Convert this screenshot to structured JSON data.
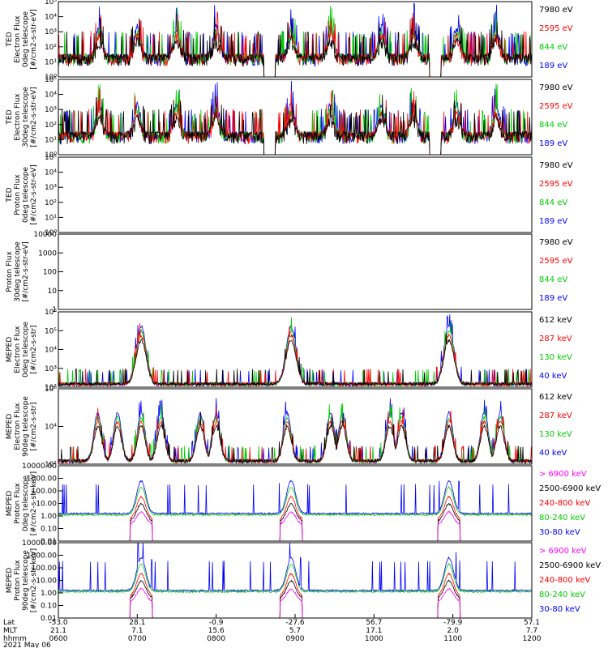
{
  "chart_data": [
    {
      "type": "line",
      "panel": "ted-electron-0deg",
      "ylabel": [
        "TED",
        "Electron Flux",
        "0deg telescope",
        "[#/cm2-s-str-eV]"
      ],
      "log": true,
      "ylim": [
        1,
        100000
      ],
      "yticks": [
        "10⁰",
        "10¹",
        "10²",
        "10³",
        "10⁴",
        "10⁵"
      ],
      "legend": [
        {
          "text": "7980 eV",
          "color": "#000000"
        },
        {
          "text": "2595 eV",
          "color": "#ff0000"
        },
        {
          "text": "844 eV",
          "color": "#00cc00"
        },
        {
          "text": "189 eV",
          "color": "#0000ff"
        }
      ]
    },
    {
      "type": "line",
      "panel": "ted-electron-30deg",
      "ylabel": [
        "TED",
        "Electron Flux",
        "30deg telescope",
        "[#/cm2-s-str-eV]"
      ],
      "log": true,
      "ylim": [
        1,
        100000
      ],
      "yticks": [
        "10⁰",
        "10¹",
        "10²",
        "10³",
        "10⁴",
        "10⁵"
      ],
      "legend": [
        {
          "text": "7980 eV",
          "color": "#000000"
        },
        {
          "text": "2595 eV",
          "color": "#ff0000"
        },
        {
          "text": "844 eV",
          "color": "#00cc00"
        },
        {
          "text": "189 eV",
          "color": "#0000ff"
        }
      ]
    },
    {
      "type": "line",
      "panel": "ted-proton-0deg",
      "ylabel": [
        "TED",
        "Proton Flux",
        "0deg telescope",
        "[#/cm2-s-str-eV]"
      ],
      "log": true,
      "ylim": [
        1,
        100000
      ],
      "yticks": [
        "10⁰",
        "10¹",
        "10²",
        "10³",
        "10⁴",
        "10⁵"
      ],
      "legend": [
        {
          "text": "7980 eV",
          "color": "#000000"
        },
        {
          "text": "2595 eV",
          "color": "#ff0000"
        },
        {
          "text": "844 eV",
          "color": "#00cc00"
        },
        {
          "text": "189 eV",
          "color": "#0000ff"
        }
      ]
    },
    {
      "type": "line",
      "panel": "ted-proton-30deg",
      "ylabel": [
        "Proton Flux",
        "30deg telescope",
        "[#/cm2-s-str-eV]"
      ],
      "log": true,
      "ylim": [
        1,
        30000
      ],
      "yticks": [
        "1",
        "10",
        "100",
        "1000",
        "10000"
      ],
      "legend": [
        {
          "text": "7980 eV",
          "color": "#000000"
        },
        {
          "text": "2595 eV",
          "color": "#ff0000"
        },
        {
          "text": "844 eV",
          "color": "#00cc00"
        },
        {
          "text": "189 eV",
          "color": "#0000ff"
        }
      ]
    },
    {
      "type": "line",
      "panel": "meped-electron-0deg",
      "ylabel": [
        "MEPED",
        "Electron Flux",
        "0deg telescope",
        "[#/cm2-s-str]"
      ],
      "log": true,
      "ylim": [
        100,
        10000000
      ],
      "yticks": [
        "10²",
        "10³",
        "10⁴",
        "10⁵",
        "10⁶"
      ],
      "legend": [
        {
          "text": "612 keV",
          "color": "#000000"
        },
        {
          "text": "287 keV",
          "color": "#ff0000"
        },
        {
          "text": "130 keV",
          "color": "#00cc00"
        },
        {
          "text": "40 keV",
          "color": "#0000ff"
        }
      ]
    },
    {
      "type": "line",
      "panel": "meped-electron-90deg",
      "ylabel": [
        "MEPED",
        "Electron Flux",
        "90deg telescope",
        "[#/cm2-s-str]"
      ],
      "log": true,
      "ylim": [
        100,
        10000000
      ],
      "yticks": [
        "10²",
        "10⁴",
        "10⁶"
      ],
      "legend": [
        {
          "text": "612 keV",
          "color": "#000000"
        },
        {
          "text": "287 keV",
          "color": "#ff0000"
        },
        {
          "text": "130 keV",
          "color": "#00cc00"
        },
        {
          "text": "40 keV",
          "color": "#0000ff"
        }
      ]
    },
    {
      "type": "line",
      "panel": "meped-proton-0deg",
      "ylabel": [
        "MEPED",
        "Proton Flux",
        "0deg telescope",
        "[#/cm2-s-str-keV]"
      ],
      "log": true,
      "ylim": [
        0.01,
        10000
      ],
      "yticks": [
        "0.01",
        "0.10",
        "1.00",
        "10.00",
        "100.00",
        "1000.00",
        "10000.00"
      ],
      "legend": [
        {
          "text": "> 6900 keV",
          "color": "#ff00ff"
        },
        {
          "text": "2500-6900 keV",
          "color": "#000000"
        },
        {
          "text": "240-800 keV",
          "color": "#ff0000"
        },
        {
          "text": "80-240 keV",
          "color": "#00cc00"
        },
        {
          "text": "30-80 keV",
          "color": "#0000ff"
        }
      ]
    },
    {
      "type": "line",
      "panel": "meped-proton-90deg",
      "ylabel": [
        "MEPED",
        "Proton Flux",
        "90deg telescope",
        "[#/cm2-s-str-keV]"
      ],
      "log": true,
      "ylim": [
        0.01,
        10000
      ],
      "yticks": [
        "0.01",
        "0.10",
        "1.00",
        "10.00",
        "100.00",
        "1000.00",
        "10000.00"
      ],
      "legend": [
        {
          "text": "> 6900 keV",
          "color": "#ff00ff"
        },
        {
          "text": "2500-6900 keV",
          "color": "#000000"
        },
        {
          "text": "240-800 keV",
          "color": "#ff0000"
        },
        {
          "text": "80-240 keV",
          "color": "#00cc00"
        },
        {
          "text": "30-80 keV",
          "color": "#0000ff"
        }
      ]
    }
  ],
  "xaxis": {
    "rows": [
      {
        "label": "Lat",
        "values": [
          "-53.0",
          "28.1",
          "-0.9",
          "-27.6",
          "56.7",
          "-79.9",
          "57.1"
        ]
      },
      {
        "label": "MLT",
        "values": [
          "21.1",
          "7.1",
          "15.6",
          "5.7",
          "17.1",
          "2.0",
          "7.7"
        ]
      },
      {
        "label": "hhmm",
        "values": [
          "0600",
          "0700",
          "0800",
          "0900",
          "1000",
          "1100",
          "1200"
        ]
      }
    ],
    "date": "2021 May 06",
    "range_hours": [
      6,
      12
    ]
  }
}
